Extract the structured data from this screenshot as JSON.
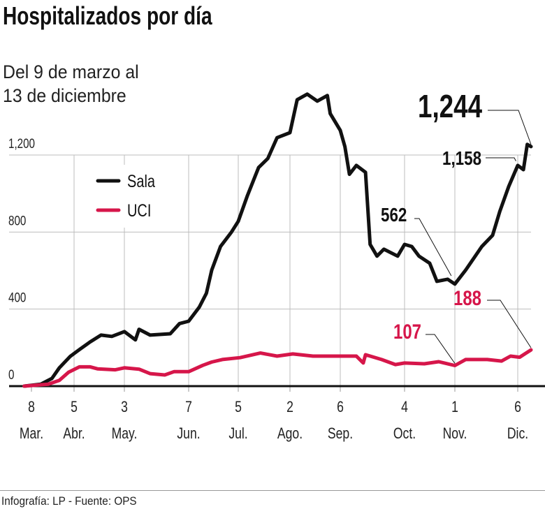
{
  "title": "Hospitalizados por día",
  "subtitle_lines": [
    "Del 9 de marzo al",
    "13 de diciembre"
  ],
  "source": "Infografía: LP - Fuente: OPS",
  "chart_data": {
    "type": "line",
    "title": "Hospitalizados por día",
    "ylim": [
      0,
      1550
    ],
    "y_ticks": [
      {
        "value": 0,
        "label": "0"
      },
      {
        "value": 400,
        "label": "400"
      },
      {
        "value": 800,
        "label": "800"
      },
      {
        "value": 1200,
        "label": "1,200"
      }
    ],
    "x_ticks": [
      {
        "date": "03-08",
        "day": "8",
        "month": "Mar."
      },
      {
        "date": "04-05",
        "day": "5",
        "month": "Abr."
      },
      {
        "date": "05-03",
        "day": "3",
        "month": "May."
      },
      {
        "date": "06-07",
        "day": "7",
        "month": "Jun."
      },
      {
        "date": "07-05",
        "day": "5",
        "month": "Jul."
      },
      {
        "date": "08-02",
        "day": "2",
        "month": "Ago."
      },
      {
        "date": "09-06",
        "day": "6",
        "month": "Sep."
      },
      {
        "date": "10-04",
        "day": "4",
        "month": "Oct."
      },
      {
        "date": "11-01",
        "day": "1",
        "month": "Nov."
      },
      {
        "date": "12-06",
        "day": "6",
        "month": "Dic."
      }
    ],
    "grid": true,
    "legend_position": "top-left",
    "series": [
      {
        "name": "Sala",
        "color": "#111111",
        "points": [
          [
            "03-09",
            0
          ],
          [
            "03-18",
            10
          ],
          [
            "03-24",
            40
          ],
          [
            "03-28",
            95
          ],
          [
            "04-03",
            155
          ],
          [
            "04-08",
            190
          ],
          [
            "04-14",
            230
          ],
          [
            "04-20",
            265
          ],
          [
            "04-26",
            258
          ],
          [
            "05-03",
            283
          ],
          [
            "05-09",
            240
          ],
          [
            "05-11",
            295
          ],
          [
            "05-17",
            265
          ],
          [
            "05-28",
            272
          ],
          [
            "06-02",
            325
          ],
          [
            "06-07",
            337
          ],
          [
            "06-13",
            410
          ],
          [
            "06-17",
            482
          ],
          [
            "06-20",
            602
          ],
          [
            "06-25",
            725
          ],
          [
            "07-01",
            798
          ],
          [
            "07-05",
            856
          ],
          [
            "07-10",
            990
          ],
          [
            "07-16",
            1135
          ],
          [
            "07-21",
            1182
          ],
          [
            "07-26",
            1290
          ],
          [
            "08-02",
            1316
          ],
          [
            "08-07",
            1487
          ],
          [
            "08-14",
            1516
          ],
          [
            "08-21",
            1480
          ],
          [
            "08-28",
            1509
          ],
          [
            "08-30",
            1415
          ],
          [
            "09-06",
            1328
          ],
          [
            "09-08",
            1244
          ],
          [
            "09-10",
            1100
          ],
          [
            "09-13",
            1146
          ],
          [
            "09-17",
            1110
          ],
          [
            "09-19",
            736
          ],
          [
            "09-22",
            675
          ],
          [
            "09-25",
            711
          ],
          [
            "10-01",
            675
          ],
          [
            "10-04",
            736
          ],
          [
            "10-08",
            725
          ],
          [
            "10-12",
            675
          ],
          [
            "10-18",
            638
          ],
          [
            "10-22",
            544
          ],
          [
            "10-28",
            555
          ],
          [
            "11-01",
            530
          ],
          [
            "11-07",
            602
          ],
          [
            "11-16",
            725
          ],
          [
            "11-22",
            783
          ],
          [
            "11-26",
            907
          ],
          [
            "12-01",
            1037
          ],
          [
            "12-06",
            1146
          ],
          [
            "12-09",
            1124
          ],
          [
            "12-11",
            1255
          ],
          [
            "12-13",
            1244
          ]
        ]
      },
      {
        "name": "UCI",
        "color": "#d6164a",
        "points": [
          [
            "03-09",
            0
          ],
          [
            "03-22",
            10
          ],
          [
            "03-28",
            30
          ],
          [
            "04-02",
            72
          ],
          [
            "04-08",
            100
          ],
          [
            "04-14",
            100
          ],
          [
            "04-18",
            90
          ],
          [
            "04-28",
            85
          ],
          [
            "05-03",
            95
          ],
          [
            "05-11",
            88
          ],
          [
            "05-17",
            65
          ],
          [
            "05-25",
            58
          ],
          [
            "05-30",
            75
          ],
          [
            "06-07",
            75
          ],
          [
            "06-15",
            108
          ],
          [
            "06-20",
            125
          ],
          [
            "06-26",
            138
          ],
          [
            "07-06",
            148
          ],
          [
            "07-17",
            172
          ],
          [
            "07-26",
            156
          ],
          [
            "08-04",
            167
          ],
          [
            "08-18",
            156
          ],
          [
            "09-06",
            156
          ],
          [
            "09-13",
            156
          ],
          [
            "09-16",
            120
          ],
          [
            "09-17",
            163
          ],
          [
            "09-24",
            138
          ],
          [
            "09-30",
            112
          ],
          [
            "10-04",
            120
          ],
          [
            "10-15",
            116
          ],
          [
            "10-23",
            127
          ],
          [
            "11-01",
            107
          ],
          [
            "11-07",
            138
          ],
          [
            "11-19",
            138
          ],
          [
            "11-27",
            130
          ],
          [
            "12-02",
            156
          ],
          [
            "12-07",
            150
          ],
          [
            "12-13",
            188
          ]
        ]
      }
    ],
    "annotations": [
      {
        "label": "1,244",
        "series": "Sala",
        "date": "12-13",
        "value": 1244
      },
      {
        "label": "1,158",
        "series": "Sala",
        "date": "12-05",
        "value": 1158
      },
      {
        "label": "562",
        "series": "Sala",
        "date": "10-30",
        "value": 562
      },
      {
        "label": "188",
        "series": "UCI",
        "date": "12-13",
        "value": 188
      },
      {
        "label": "107",
        "series": "UCI",
        "date": "11-01",
        "value": 107
      }
    ]
  }
}
